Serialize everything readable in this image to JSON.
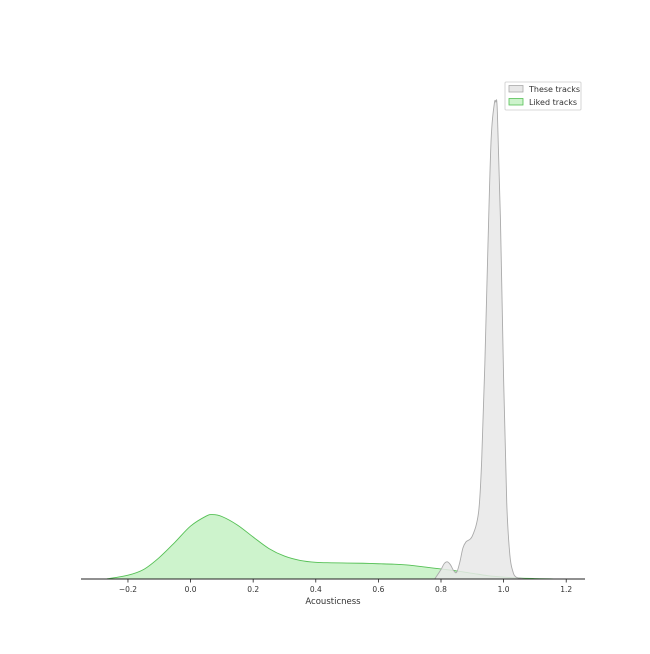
{
  "chart_data": {
    "type": "area",
    "title": "",
    "xlabel": "Acousticness",
    "ylabel": "",
    "xlim": [
      -0.35,
      1.26
    ],
    "ylim": [
      0,
      1
    ],
    "grid": false,
    "legend_position": "top-right",
    "x_ticks": [
      -0.2,
      0.0,
      0.2,
      0.4,
      0.6,
      0.8,
      1.0,
      1.2
    ],
    "x_tick_labels": [
      "−0.2",
      "0.0",
      "0.2",
      "0.4",
      "0.6",
      "0.8",
      "1.0",
      "1.2"
    ],
    "series": [
      {
        "name": "These tracks",
        "fill": "#e8e8e8",
        "stroke": "#aaaaaa",
        "x": [
          0.78,
          0.8,
          0.81,
          0.82,
          0.83,
          0.84,
          0.85,
          0.86,
          0.87,
          0.88,
          0.9,
          0.92,
          0.93,
          0.94,
          0.95,
          0.96,
          0.97,
          0.975,
          0.98,
          0.99,
          1.0,
          1.01,
          1.02,
          1.03,
          1.04,
          1.06,
          1.08
        ],
        "values": [
          0.0,
          0.02,
          0.032,
          0.036,
          0.03,
          0.018,
          0.014,
          0.035,
          0.065,
          0.078,
          0.09,
          0.14,
          0.25,
          0.45,
          0.7,
          0.92,
          0.995,
          1.0,
          0.98,
          0.75,
          0.42,
          0.16,
          0.05,
          0.015,
          0.004,
          0.001,
          0.0
        ]
      },
      {
        "name": "Liked tracks",
        "fill": "#cdf3cc",
        "stroke": "#55c055",
        "x": [
          -0.27,
          -0.2,
          -0.15,
          -0.1,
          -0.05,
          0.0,
          0.05,
          0.07,
          0.1,
          0.15,
          0.2,
          0.25,
          0.3,
          0.35,
          0.4,
          0.45,
          0.5,
          0.55,
          0.6,
          0.65,
          0.7,
          0.75,
          0.8,
          0.85,
          0.9,
          0.95,
          1.0,
          1.05,
          1.1,
          1.15,
          1.19
        ],
        "values": [
          0.0,
          0.008,
          0.02,
          0.045,
          0.077,
          0.111,
          0.132,
          0.135,
          0.131,
          0.113,
          0.088,
          0.064,
          0.048,
          0.039,
          0.035,
          0.034,
          0.0335,
          0.033,
          0.032,
          0.031,
          0.029,
          0.025,
          0.021,
          0.017,
          0.012,
          0.007,
          0.004,
          0.002,
          0.001,
          0.0003,
          0.0
        ]
      }
    ]
  }
}
